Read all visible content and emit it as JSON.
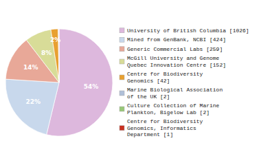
{
  "chart_data": {
    "type": "pie",
    "categories": [
      "University of British Columbia [1026]",
      "Mined from GenBank, NCBI [424]",
      "Generic Commercial Labs [259]",
      "McGill University and Genome\nQuebec Innovation Centre [152]",
      "Centre for Biodiversity\nGenomics [42]",
      "Marine Biological Association\nof the UK [2]",
      "Culture Collection of Marine\nPlankton, Bigelow Lab [2]",
      "Centre for Biodiversity\nGenomics, Informatics\nDepartment [1]"
    ],
    "values": [
      1026,
      424,
      259,
      152,
      42,
      2,
      2,
      1
    ],
    "value_labels": [
      "54%",
      "22%",
      "14%",
      "8%",
      "2%",
      null,
      null,
      null
    ],
    "colors": [
      "#ddb8dd",
      "#c8d8ec",
      "#e8a898",
      "#d8dc98",
      "#e8a030",
      "#b0c0d8",
      "#98c878",
      "#c83020"
    ],
    "data_labels": true,
    "legend": "right"
  }
}
